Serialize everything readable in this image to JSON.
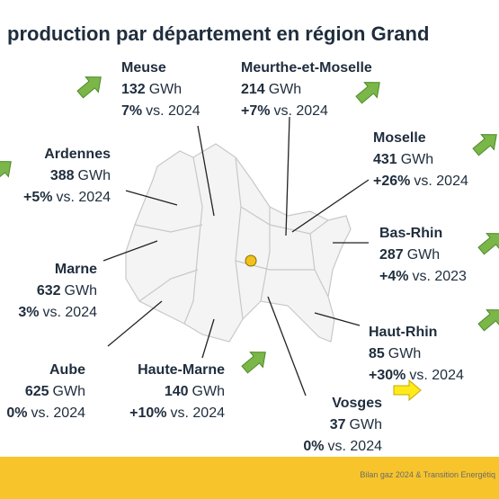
{
  "title": "production par département en région Grand",
  "departments": [
    {
      "name": "Meuse",
      "value": "132",
      "unit": "GWh",
      "change": "7%",
      "reference": "vs. 2024"
    },
    {
      "name": "Meurthe-et-Moselle",
      "value": "214",
      "unit": "GWh",
      "change": "+7%",
      "reference": "vs. 2024"
    },
    {
      "name": "Moselle",
      "value": "431",
      "unit": "GWh",
      "change": "+26%",
      "reference": "vs. 2024"
    },
    {
      "name": "Ardennes",
      "value": "388",
      "unit": "GWh",
      "change": "+5%",
      "reference": "vs. 2024"
    },
    {
      "name": "Bas-Rhin",
      "value": "287",
      "unit": "GWh",
      "change": "+4%",
      "reference": "vs. 2023"
    },
    {
      "name": "Marne",
      "value": "632",
      "unit": "GWh",
      "change": "3%",
      "reference": "vs. 2024"
    },
    {
      "name": "Haut-Rhin",
      "value": "85",
      "unit": "GWh",
      "change": "+30%",
      "reference": "vs. 2024"
    },
    {
      "name": "Aube",
      "value": "625",
      "unit": "GWh",
      "change": "0%",
      "reference": "vs. 2024"
    },
    {
      "name": "Haute-Marne",
      "value": "140",
      "unit": "GWh",
      "change": "+10%",
      "reference": "vs. 2024"
    },
    {
      "name": "Vosges",
      "value": "37",
      "unit": "GWh",
      "change": "0%",
      "reference": "vs. 2024"
    }
  ],
  "footer": "Bilan gaz 2024 & Transition Energétiq"
}
